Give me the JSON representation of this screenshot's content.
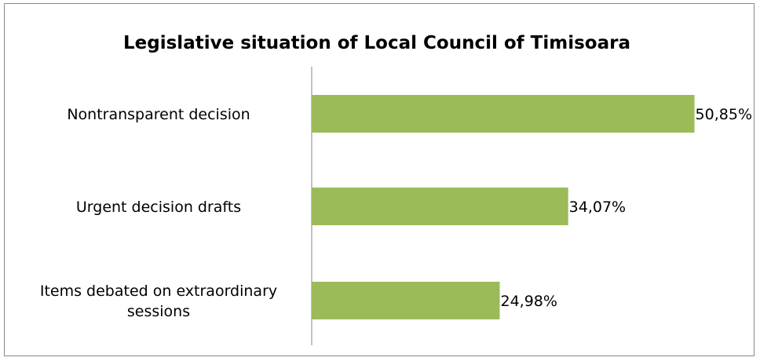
{
  "chart_data": {
    "type": "bar",
    "orientation": "horizontal",
    "title": "Legislative situation of Local Council of Timisoara",
    "categories": [
      "Nontransparent decision",
      "Urgent decision drafts",
      "Items debated on extraordinary sessions"
    ],
    "category_lines": [
      [
        "Nontransparent decision"
      ],
      [
        "Urgent decision drafts"
      ],
      [
        "Items debated on extraordinary",
        "sessions"
      ]
    ],
    "values": [
      50.85,
      34.07,
      24.98
    ],
    "value_labels": [
      "50,85%",
      "34,07%",
      "24,98%"
    ],
    "unit": "%",
    "xlabel": "",
    "ylabel": "",
    "xlim": [
      0,
      51
    ],
    "grid": false,
    "legend": "none",
    "bar_color": "#9bbb59"
  }
}
